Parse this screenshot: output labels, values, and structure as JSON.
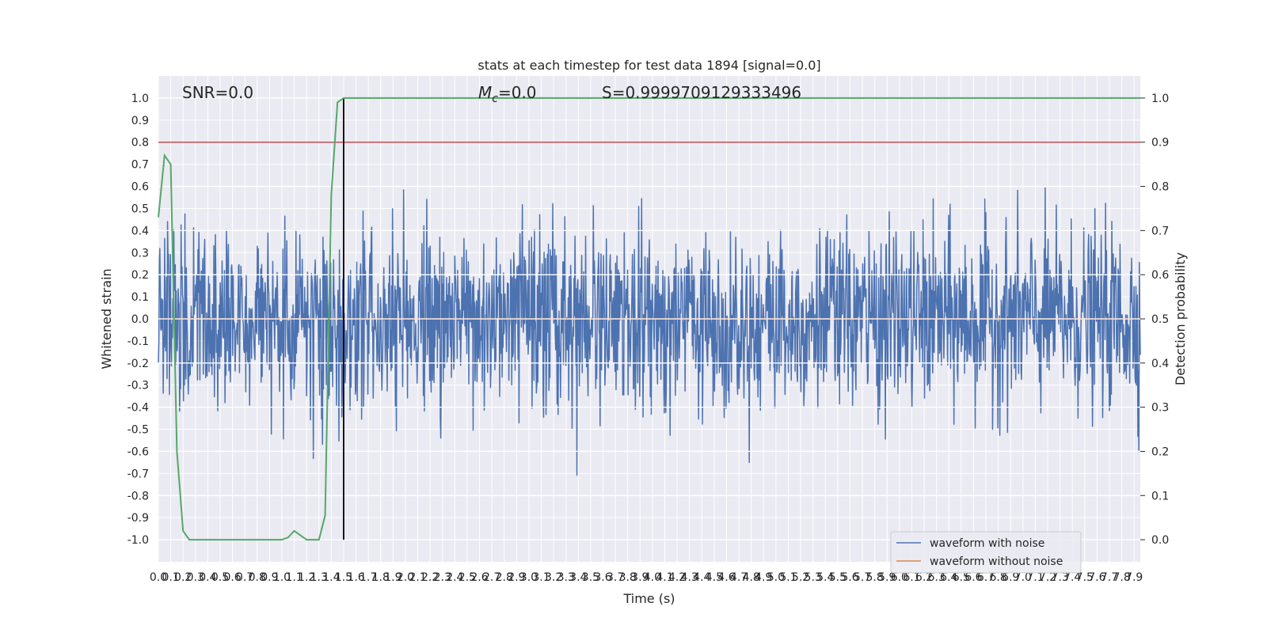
{
  "chart_data": {
    "type": "line",
    "title": "stats at each timestep for test data 1894 [signal=0.0]",
    "xlabel": "Time (s)",
    "ylabel_left": "Whitened strain",
    "ylabel_right": "Detection probability",
    "xlim": [
      0.0,
      7.95
    ],
    "ylim_left": [
      -1.1,
      1.1
    ],
    "ylim_right": [
      -0.05,
      1.05
    ],
    "xticks": [
      "0.0",
      "0.1",
      "0.2",
      "0.3",
      "0.4",
      "0.5",
      "0.6",
      "0.7",
      "0.8",
      "0.9",
      "1.0",
      "1.1",
      "1.2",
      "1.3",
      "1.4",
      "1.5",
      "1.6",
      "1.7",
      "1.8",
      "1.9",
      "2.0",
      "2.1",
      "2.2",
      "2.3",
      "2.4",
      "2.5",
      "2.6",
      "2.7",
      "2.8",
      "2.9",
      "3.0",
      "3.1",
      "3.2",
      "3.3",
      "3.4",
      "3.5",
      "3.6",
      "3.7",
      "3.8",
      "3.9",
      "4.0",
      "4.1",
      "4.2",
      "4.3",
      "4.4",
      "4.5",
      "4.6",
      "4.7",
      "4.8",
      "4.9",
      "5.0",
      "5.1",
      "5.2",
      "5.3",
      "5.4",
      "5.5",
      "5.6",
      "5.7",
      "5.8",
      "5.9",
      "6.0",
      "6.1",
      "6.2",
      "6.3",
      "6.4",
      "6.5",
      "6.6",
      "6.7",
      "6.8",
      "6.9",
      "7.0",
      "7.1",
      "7.2",
      "7.3",
      "7.4",
      "7.5",
      "7.6",
      "7.7",
      "7.8",
      "7.9"
    ],
    "yticks_left": [
      "1.0",
      "0.9",
      "0.8",
      "0.7",
      "0.6",
      "0.5",
      "0.4",
      "0.3",
      "0.2",
      "0.1",
      "0.0",
      "-0.1",
      "-0.2",
      "-0.3",
      "-0.4",
      "-0.5",
      "-0.6",
      "-0.7",
      "-0.8",
      "-0.9",
      "-1.0"
    ],
    "yticks_right": [
      "1.0",
      "0.9",
      "0.8",
      "0.7",
      "0.6",
      "0.5",
      "0.4",
      "0.3",
      "0.2",
      "0.1",
      "0.0"
    ],
    "annotations": {
      "snr": "SNR=0.0",
      "mc_symbol": "M",
      "mc_sub": "c",
      "mc_value": "=0.0",
      "s_value": "S=0.9999709129333496"
    },
    "legend": {
      "placement": "lower-right",
      "entries": [
        {
          "label": "waveform with noise",
          "color": "#4c72b0"
        },
        {
          "label": "waveform without noise",
          "color": "#dd8452"
        }
      ]
    },
    "threshold_right": 0.9,
    "threshold_color": "#c44e52",
    "detection_time": 1.5,
    "detection_marker_color": "#000000",
    "waveform_noise": {
      "name": "waveform with noise",
      "color": "#4c72b0",
      "duration": 7.95,
      "n_points": 2035,
      "seed": 1894,
      "scale": 0.2
    },
    "waveform_clean": {
      "name": "waveform without noise",
      "color": "#dd8452",
      "x": [
        0.0,
        7.95
      ],
      "y": [
        0.0,
        0.0
      ]
    },
    "detection_probability": {
      "color": "#55a868",
      "x": [
        0.0,
        0.05,
        0.1,
        0.15,
        0.2,
        0.25,
        0.3,
        0.4,
        0.6,
        0.8,
        1.0,
        1.05,
        1.1,
        1.15,
        1.2,
        1.25,
        1.3,
        1.35,
        1.4,
        1.45,
        1.5,
        1.55,
        1.6,
        1.65,
        7.95
      ],
      "y": [
        0.73,
        0.87,
        0.85,
        0.2,
        0.02,
        0.0,
        0.0,
        0.0,
        0.0,
        0.0,
        0.0,
        0.005,
        0.02,
        0.01,
        0.0,
        0.0,
        0.0,
        0.055,
        0.78,
        0.99,
        1.0,
        1.0,
        1.0,
        1.0,
        1.0
      ]
    }
  }
}
